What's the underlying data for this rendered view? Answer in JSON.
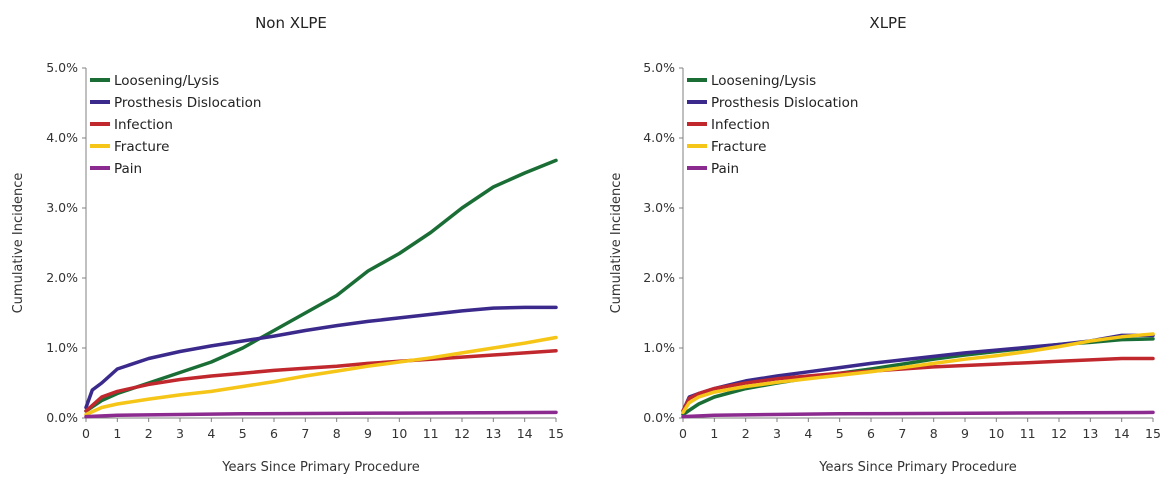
{
  "chart_data": [
    {
      "type": "line",
      "title": "Non XLPE",
      "xlabel": "Years Since Primary Procedure",
      "ylabel": "Cumulative Incidence",
      "xlim": [
        0,
        15
      ],
      "ylim": [
        0,
        5
      ],
      "xticks": [
        "0",
        "1",
        "2",
        "3",
        "4",
        "5",
        "6",
        "7",
        "8",
        "9",
        "10",
        "11",
        "12",
        "13",
        "14",
        "15"
      ],
      "yticks": [
        "0.0%",
        "1.0%",
        "2.0%",
        "3.0%",
        "4.0%",
        "5.0%"
      ],
      "grid": false,
      "legend_position": "top-left",
      "series": [
        {
          "name": "Loosening/Lysis",
          "color": "#1a6e35",
          "x": [
            0,
            0.5,
            1,
            2,
            3,
            4,
            5,
            6,
            7,
            8,
            9,
            10,
            11,
            12,
            13,
            14,
            15
          ],
          "y": [
            0.1,
            0.25,
            0.35,
            0.5,
            0.65,
            0.8,
            1.0,
            1.25,
            1.5,
            1.75,
            2.1,
            2.35,
            2.65,
            3.0,
            3.3,
            3.5,
            3.68
          ]
        },
        {
          "name": "Prosthesis Dislocation",
          "color": "#3b2a8c",
          "x": [
            0,
            0.2,
            0.5,
            1,
            2,
            3,
            4,
            5,
            6,
            7,
            8,
            9,
            10,
            11,
            12,
            13,
            14,
            15
          ],
          "y": [
            0.15,
            0.4,
            0.5,
            0.7,
            0.85,
            0.95,
            1.03,
            1.1,
            1.17,
            1.25,
            1.32,
            1.38,
            1.43,
            1.48,
            1.53,
            1.57,
            1.58,
            1.58
          ]
        },
        {
          "name": "Infection",
          "color": "#c0282d",
          "x": [
            0,
            0.5,
            1,
            2,
            3,
            4,
            5,
            6,
            7,
            8,
            9,
            10,
            11,
            12,
            13,
            14,
            15
          ],
          "y": [
            0.1,
            0.3,
            0.38,
            0.48,
            0.55,
            0.6,
            0.64,
            0.68,
            0.71,
            0.74,
            0.78,
            0.81,
            0.84,
            0.87,
            0.9,
            0.93,
            0.96
          ]
        },
        {
          "name": "Fracture",
          "color": "#f5c518",
          "x": [
            0,
            0.5,
            1,
            2,
            3,
            4,
            5,
            6,
            7,
            8,
            9,
            10,
            11,
            12,
            13,
            14,
            15
          ],
          "y": [
            0.05,
            0.15,
            0.2,
            0.27,
            0.33,
            0.38,
            0.45,
            0.52,
            0.6,
            0.67,
            0.74,
            0.8,
            0.86,
            0.93,
            1.0,
            1.07,
            1.15
          ]
        },
        {
          "name": "Pain",
          "color": "#8b2a8f",
          "x": [
            0,
            1,
            5,
            10,
            15
          ],
          "y": [
            0.02,
            0.04,
            0.06,
            0.07,
            0.08
          ]
        }
      ]
    },
    {
      "type": "line",
      "title": "XLPE",
      "xlabel": "Years Since Primary Procedure",
      "ylabel": "Cumulative Incidence",
      "xlim": [
        0,
        15
      ],
      "ylim": [
        0,
        5
      ],
      "xticks": [
        "0",
        "1",
        "2",
        "3",
        "4",
        "5",
        "6",
        "7",
        "8",
        "9",
        "10",
        "11",
        "12",
        "13",
        "14",
        "15"
      ],
      "yticks": [
        "0.0%",
        "1.0%",
        "2.0%",
        "3.0%",
        "4.0%",
        "5.0%"
      ],
      "grid": false,
      "legend_position": "top-left",
      "series": [
        {
          "name": "Loosening/Lysis",
          "color": "#1a6e35",
          "x": [
            0,
            0.5,
            1,
            2,
            3,
            4,
            5,
            6,
            7,
            8,
            9,
            10,
            11,
            12,
            13,
            14,
            15
          ],
          "y": [
            0.05,
            0.2,
            0.3,
            0.42,
            0.5,
            0.57,
            0.64,
            0.7,
            0.77,
            0.84,
            0.9,
            0.95,
            1.0,
            1.05,
            1.08,
            1.12,
            1.13
          ]
        },
        {
          "name": "Prosthesis Dislocation",
          "color": "#3b2a8c",
          "x": [
            0,
            0.2,
            0.5,
            1,
            2,
            3,
            4,
            5,
            6,
            7,
            8,
            9,
            10,
            11,
            12,
            13,
            14,
            15
          ],
          "y": [
            0.1,
            0.3,
            0.35,
            0.42,
            0.53,
            0.6,
            0.66,
            0.72,
            0.78,
            0.83,
            0.88,
            0.93,
            0.97,
            1.01,
            1.05,
            1.1,
            1.18,
            1.18
          ]
        },
        {
          "name": "Infection",
          "color": "#c0282d",
          "x": [
            0,
            0.2,
            0.5,
            1,
            2,
            3,
            4,
            5,
            6,
            7,
            8,
            9,
            10,
            11,
            12,
            13,
            14,
            15
          ],
          "y": [
            0.1,
            0.28,
            0.35,
            0.42,
            0.5,
            0.56,
            0.6,
            0.64,
            0.67,
            0.7,
            0.73,
            0.75,
            0.77,
            0.79,
            0.81,
            0.83,
            0.85,
            0.85
          ]
        },
        {
          "name": "Fracture",
          "color": "#f5c518",
          "x": [
            0,
            0.2,
            0.5,
            1,
            2,
            3,
            4,
            5,
            6,
            7,
            8,
            9,
            10,
            11,
            12,
            13,
            14,
            15
          ],
          "y": [
            0.08,
            0.22,
            0.3,
            0.37,
            0.45,
            0.51,
            0.56,
            0.61,
            0.66,
            0.72,
            0.78,
            0.84,
            0.89,
            0.95,
            1.02,
            1.1,
            1.16,
            1.2
          ]
        },
        {
          "name": "Pain",
          "color": "#8b2a8f",
          "x": [
            0,
            1,
            5,
            10,
            15
          ],
          "y": [
            0.02,
            0.04,
            0.06,
            0.07,
            0.08
          ]
        }
      ]
    }
  ]
}
